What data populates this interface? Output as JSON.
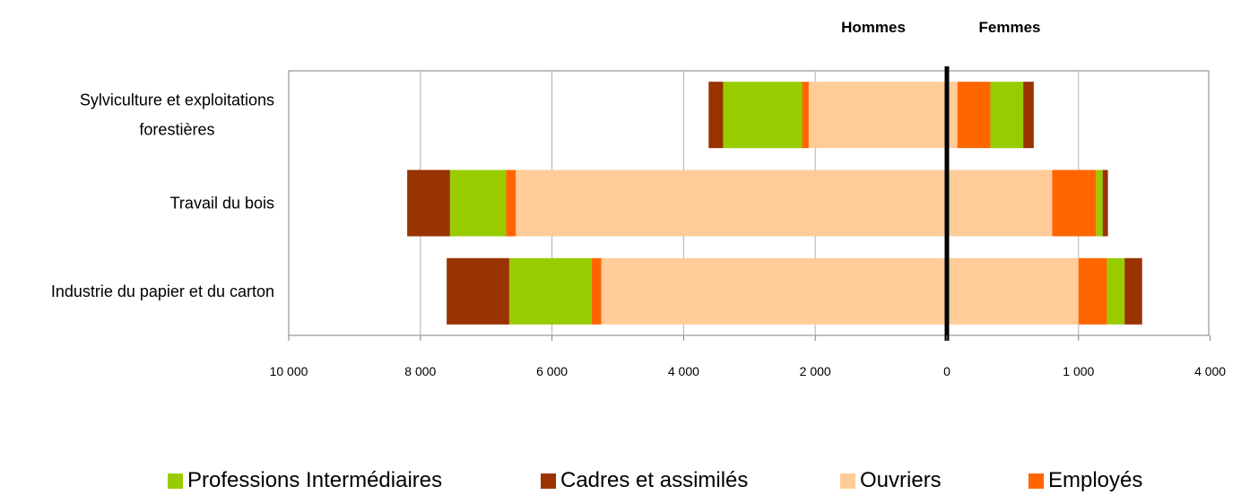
{
  "chart_data": {
    "type": "bar",
    "orientation": "horizontal",
    "stacked": true,
    "layout": "population-pyramid",
    "side_labels": {
      "left": "Hommes",
      "right": "Femmes"
    },
    "categories": [
      [
        "Sylviculture et exploitations",
        "forestières"
      ],
      [
        "Travail du bois"
      ],
      [
        "Industrie du papier et du carton"
      ]
    ],
    "x_ticks": {
      "left": [
        "10 000",
        "8 000",
        "6 000",
        "4 000",
        "2 000",
        "0"
      ],
      "right": [
        "1 000",
        "4 000"
      ]
    },
    "hommes_scale": {
      "max": 10000,
      "step": 2000
    },
    "femmes_scale": {
      "points": [
        [
          0,
          0
        ],
        [
          1000,
          2
        ],
        [
          4000,
          4
        ]
      ]
    },
    "grid": true,
    "legend_position": "bottom",
    "series": [
      {
        "name": "Ouvriers",
        "color": "#FFCC99",
        "hommes": [
          2100,
          6550,
          5250
        ],
        "femmes": [
          80,
          800,
          1000
        ]
      },
      {
        "name": "Employés",
        "color": "#FF6600",
        "hommes": [
          100,
          150,
          150
        ],
        "femmes": [
          250,
          600,
          650
        ]
      },
      {
        "name": "Professions Intermédiaires",
        "color": "#99CC00",
        "hommes": [
          1200,
          850,
          1250
        ],
        "femmes": [
          250,
          150,
          400
        ]
      },
      {
        "name": "Cadres et assimilés",
        "color": "#993300",
        "hommes": [
          220,
          650,
          950
        ],
        "femmes": [
          80,
          120,
          400
        ]
      }
    ]
  },
  "legend": [
    {
      "label": "Professions Intermédiaires",
      "color": "#99CC00"
    },
    {
      "label": "Cadres et assimilés",
      "color": "#993300"
    },
    {
      "label": "Ouvriers",
      "color": "#FFCC99"
    },
    {
      "label": "Employés",
      "color": "#FF6600"
    }
  ]
}
